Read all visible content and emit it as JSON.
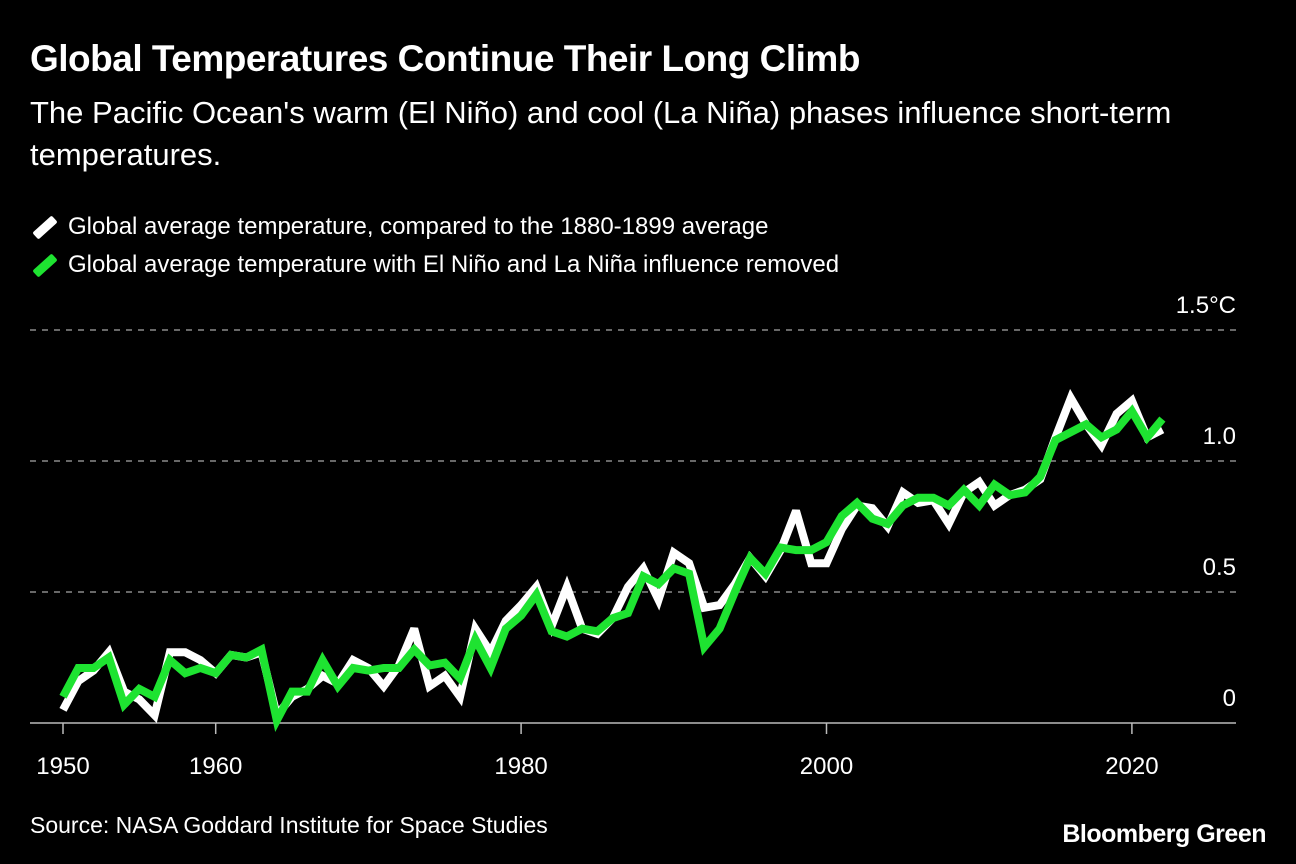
{
  "title": "Global Temperatures Continue Their Long Climb",
  "subtitle": "The Pacific Ocean's warm (El Niño) and cool (La Niña) phases influence short-term temperatures.",
  "source": "Source: NASA Goddard Institute for Space Studies",
  "brand": "Bloomberg Green",
  "chart_data": {
    "type": "line",
    "grid": true,
    "legend_position": "top-left",
    "xlim": [
      1950,
      2022
    ],
    "ylim": [
      0,
      1.5
    ],
    "x_ticks": [
      "1950",
      "1960",
      "1980",
      "2000",
      "2020"
    ],
    "y_ticks": [
      "0",
      "0.5",
      "1.0",
      "1.5°C"
    ],
    "x": [
      1950,
      1951,
      1952,
      1953,
      1954,
      1955,
      1956,
      1957,
      1958,
      1959,
      1960,
      1961,
      1962,
      1963,
      1964,
      1965,
      1966,
      1967,
      1968,
      1969,
      1970,
      1971,
      1972,
      1973,
      1974,
      1975,
      1976,
      1977,
      1978,
      1979,
      1980,
      1981,
      1982,
      1983,
      1984,
      1985,
      1986,
      1987,
      1988,
      1989,
      1990,
      1991,
      1992,
      1993,
      1994,
      1995,
      1996,
      1997,
      1998,
      1999,
      2000,
      2001,
      2002,
      2003,
      2004,
      2005,
      2006,
      2007,
      2008,
      2009,
      2010,
      2011,
      2012,
      2013,
      2014,
      2015,
      2016,
      2017,
      2018,
      2019,
      2020,
      2021,
      2022
    ],
    "series": [
      {
        "name": "Global average temperature, compared to the 1880-1899 average",
        "color": "#ffffff",
        "values": [
          0.05,
          0.16,
          0.2,
          0.27,
          0.12,
          0.09,
          0.03,
          0.27,
          0.27,
          0.24,
          0.19,
          0.26,
          0.25,
          0.27,
          0.03,
          0.1,
          0.13,
          0.18,
          0.15,
          0.24,
          0.21,
          0.14,
          0.22,
          0.36,
          0.14,
          0.18,
          0.1,
          0.36,
          0.27,
          0.39,
          0.45,
          0.52,
          0.37,
          0.52,
          0.36,
          0.34,
          0.4,
          0.52,
          0.59,
          0.47,
          0.65,
          0.61,
          0.44,
          0.45,
          0.53,
          0.63,
          0.56,
          0.66,
          0.81,
          0.61,
          0.61,
          0.74,
          0.83,
          0.82,
          0.75,
          0.88,
          0.84,
          0.85,
          0.76,
          0.88,
          0.92,
          0.83,
          0.87,
          0.89,
          0.93,
          1.09,
          1.24,
          1.14,
          1.06,
          1.18,
          1.23,
          1.09,
          1.12
        ]
      },
      {
        "name": "Global average temperature with El Niño and La Niña influence removed",
        "color": "#1ee331",
        "values": [
          0.1,
          0.21,
          0.21,
          0.25,
          0.07,
          0.13,
          0.1,
          0.24,
          0.19,
          0.21,
          0.19,
          0.26,
          0.25,
          0.28,
          0.01,
          0.12,
          0.12,
          0.24,
          0.14,
          0.21,
          0.2,
          0.21,
          0.21,
          0.28,
          0.22,
          0.23,
          0.17,
          0.32,
          0.21,
          0.36,
          0.41,
          0.49,
          0.35,
          0.33,
          0.36,
          0.35,
          0.4,
          0.42,
          0.56,
          0.53,
          0.59,
          0.57,
          0.29,
          0.36,
          0.5,
          0.63,
          0.57,
          0.67,
          0.66,
          0.66,
          0.69,
          0.79,
          0.84,
          0.78,
          0.76,
          0.83,
          0.86,
          0.86,
          0.83,
          0.89,
          0.83,
          0.91,
          0.87,
          0.88,
          0.94,
          1.08,
          1.11,
          1.14,
          1.09,
          1.12,
          1.19,
          1.09,
          1.16
        ]
      }
    ]
  }
}
